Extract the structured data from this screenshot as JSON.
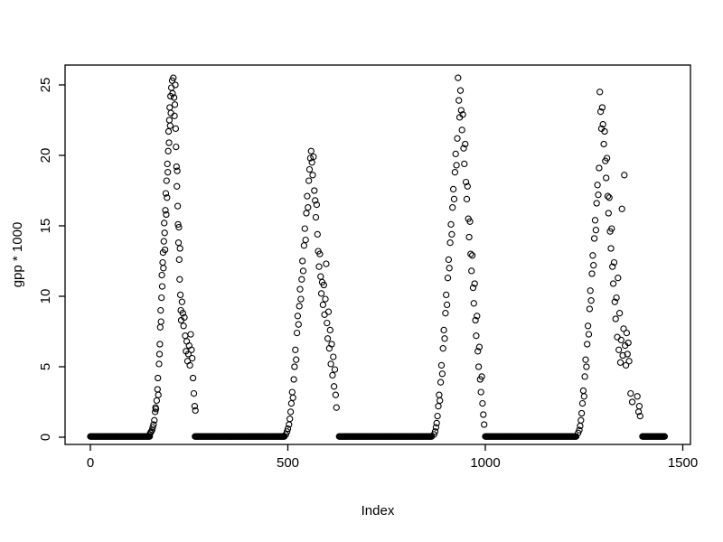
{
  "chart_data": {
    "type": "scatter",
    "title": "",
    "xlabel": "Index",
    "ylabel": "gpp * 1000",
    "xlim": [
      0,
      1500
    ],
    "ylim": [
      0,
      25
    ],
    "x_ticks": [
      0,
      500,
      1000,
      1500
    ],
    "y_ticks": [
      0,
      5,
      10,
      15,
      20,
      25
    ],
    "grid": "off",
    "legend": "none",
    "marker": {
      "shape": "open-circle",
      "color": "#000000",
      "radius_px": 3.1
    },
    "zero_value": 0.05,
    "zero_runs": [
      [
        0,
        150
      ],
      [
        265,
        492
      ],
      [
        630,
        865
      ],
      [
        1000,
        1230
      ],
      [
        1398,
        1455
      ]
    ],
    "points": [
      [
        150,
        0.2
      ],
      [
        152,
        0.3
      ],
      [
        154,
        0.4
      ],
      [
        156,
        0.5
      ],
      [
        158,
        0.7
      ],
      [
        160,
        0.9
      ],
      [
        162,
        1.2
      ],
      [
        164,
        1.8
      ],
      [
        165,
        2.1
      ],
      [
        166,
        2.0
      ],
      [
        168,
        2.6
      ],
      [
        170,
        3.4
      ],
      [
        171,
        4.2
      ],
      [
        172,
        3.0
      ],
      [
        174,
        5.2
      ],
      [
        175,
        5.9
      ],
      [
        176,
        6.6
      ],
      [
        177,
        7.8
      ],
      [
        178,
        9.0
      ],
      [
        179,
        8.2
      ],
      [
        180,
        9.9
      ],
      [
        181,
        11.5
      ],
      [
        182,
        10.7
      ],
      [
        183,
        12.4
      ],
      [
        184,
        13.1
      ],
      [
        185,
        12.0
      ],
      [
        186,
        13.9
      ],
      [
        187,
        15.2
      ],
      [
        188,
        14.5
      ],
      [
        189,
        13.3
      ],
      [
        190,
        16.1
      ],
      [
        191,
        17.3
      ],
      [
        192,
        15.8
      ],
      [
        193,
        18.2
      ],
      [
        194,
        17.0
      ],
      [
        195,
        19.4
      ],
      [
        196,
        18.8
      ],
      [
        197,
        20.3
      ],
      [
        198,
        21.7
      ],
      [
        199,
        20.9
      ],
      [
        200,
        22.5
      ],
      [
        201,
        23.4
      ],
      [
        202,
        22.1
      ],
      [
        203,
        24.2
      ],
      [
        204,
        23.0
      ],
      [
        205,
        24.8
      ],
      [
        207,
        25.3
      ],
      [
        208,
        24.4
      ],
      [
        210,
        25.5
      ],
      [
        212,
        24.1
      ],
      [
        213,
        22.8
      ],
      [
        214,
        23.6
      ],
      [
        215,
        25.0
      ],
      [
        216,
        21.9
      ],
      [
        217,
        20.6
      ],
      [
        218,
        19.2
      ],
      [
        219,
        17.8
      ],
      [
        220,
        18.9
      ],
      [
        221,
        16.4
      ],
      [
        222,
        15.1
      ],
      [
        223,
        13.8
      ],
      [
        224,
        14.9
      ],
      [
        225,
        12.6
      ],
      [
        226,
        11.2
      ],
      [
        227,
        13.4
      ],
      [
        228,
        10.1
      ],
      [
        229,
        9.0
      ],
      [
        230,
        8.3
      ],
      [
        232,
        9.6
      ],
      [
        234,
        8.8
      ],
      [
        236,
        7.9
      ],
      [
        238,
        8.5
      ],
      [
        240,
        7.2
      ],
      [
        242,
        6.1
      ],
      [
        244,
        6.8
      ],
      [
        246,
        5.4
      ],
      [
        248,
        5.9
      ],
      [
        250,
        6.5
      ],
      [
        252,
        5.1
      ],
      [
        254,
        7.3
      ],
      [
        256,
        6.2
      ],
      [
        258,
        5.6
      ],
      [
        260,
        4.2
      ],
      [
        262,
        3.1
      ],
      [
        264,
        2.2
      ],
      [
        266,
        1.9
      ],
      [
        495,
        0.2
      ],
      [
        498,
        0.4
      ],
      [
        500,
        0.6
      ],
      [
        503,
        0.9
      ],
      [
        505,
        1.3
      ],
      [
        507,
        1.8
      ],
      [
        509,
        2.4
      ],
      [
        511,
        3.2
      ],
      [
        513,
        2.8
      ],
      [
        515,
        4.1
      ],
      [
        517,
        5.0
      ],
      [
        519,
        6.2
      ],
      [
        521,
        5.5
      ],
      [
        523,
        7.4
      ],
      [
        525,
        8.6
      ],
      [
        527,
        8.0
      ],
      [
        529,
        9.3
      ],
      [
        531,
        10.5
      ],
      [
        533,
        9.8
      ],
      [
        535,
        11.2
      ],
      [
        537,
        12.5
      ],
      [
        539,
        11.8
      ],
      [
        541,
        13.6
      ],
      [
        543,
        14.8
      ],
      [
        545,
        14.0
      ],
      [
        547,
        15.9
      ],
      [
        549,
        17.1
      ],
      [
        551,
        16.3
      ],
      [
        553,
        18.2
      ],
      [
        555,
        19.0
      ],
      [
        557,
        19.8
      ],
      [
        559,
        20.3
      ],
      [
        561,
        19.5
      ],
      [
        563,
        18.6
      ],
      [
        565,
        19.9
      ],
      [
        567,
        17.5
      ],
      [
        569,
        16.8
      ],
      [
        571,
        15.6
      ],
      [
        573,
        16.5
      ],
      [
        575,
        14.4
      ],
      [
        577,
        13.2
      ],
      [
        579,
        12.1
      ],
      [
        581,
        13.0
      ],
      [
        583,
        11.4
      ],
      [
        585,
        10.2
      ],
      [
        587,
        11.0
      ],
      [
        589,
        9.4
      ],
      [
        591,
        10.8
      ],
      [
        593,
        8.7
      ],
      [
        595,
        9.8
      ],
      [
        597,
        12.3
      ],
      [
        599,
        8.1
      ],
      [
        601,
        7.0
      ],
      [
        603,
        8.9
      ],
      [
        605,
        6.3
      ],
      [
        607,
        7.6
      ],
      [
        609,
        5.2
      ],
      [
        611,
        6.6
      ],
      [
        613,
        4.4
      ],
      [
        615,
        5.7
      ],
      [
        617,
        3.6
      ],
      [
        619,
        4.8
      ],
      [
        621,
        3.0
      ],
      [
        623,
        2.1
      ],
      [
        870,
        0.2
      ],
      [
        873,
        0.4
      ],
      [
        875,
        0.7
      ],
      [
        877,
        1.0
      ],
      [
        879,
        1.5
      ],
      [
        881,
        2.2
      ],
      [
        883,
        3.0
      ],
      [
        885,
        2.6
      ],
      [
        887,
        3.9
      ],
      [
        889,
        5.1
      ],
      [
        891,
        4.5
      ],
      [
        893,
        6.3
      ],
      [
        895,
        7.6
      ],
      [
        897,
        7.0
      ],
      [
        899,
        8.8
      ],
      [
        901,
        10.1
      ],
      [
        903,
        9.4
      ],
      [
        905,
        11.3
      ],
      [
        907,
        12.6
      ],
      [
        909,
        12.0
      ],
      [
        911,
        13.8
      ],
      [
        913,
        15.1
      ],
      [
        915,
        14.4
      ],
      [
        917,
        16.3
      ],
      [
        919,
        17.6
      ],
      [
        921,
        16.9
      ],
      [
        923,
        18.8
      ],
      [
        925,
        20.1
      ],
      [
        927,
        19.3
      ],
      [
        929,
        21.2
      ],
      [
        931,
        25.5
      ],
      [
        933,
        23.9
      ],
      [
        935,
        22.7
      ],
      [
        937,
        24.6
      ],
      [
        939,
        23.2
      ],
      [
        941,
        21.8
      ],
      [
        943,
        22.9
      ],
      [
        945,
        20.5
      ],
      [
        947,
        19.4
      ],
      [
        949,
        20.8
      ],
      [
        951,
        18.1
      ],
      [
        953,
        16.9
      ],
      [
        955,
        17.8
      ],
      [
        957,
        15.5
      ],
      [
        959,
        14.2
      ],
      [
        961,
        15.3
      ],
      [
        963,
        13.0
      ],
      [
        965,
        11.8
      ],
      [
        967,
        12.9
      ],
      [
        969,
        10.6
      ],
      [
        971,
        9.5
      ],
      [
        973,
        10.9
      ],
      [
        975,
        8.3
      ],
      [
        977,
        7.2
      ],
      [
        979,
        8.6
      ],
      [
        981,
        6.1
      ],
      [
        983,
        5.0
      ],
      [
        985,
        6.4
      ],
      [
        987,
        4.1
      ],
      [
        989,
        3.2
      ],
      [
        991,
        4.3
      ],
      [
        993,
        2.4
      ],
      [
        995,
        1.6
      ],
      [
        997,
        0.9
      ],
      [
        1235,
        0.3
      ],
      [
        1238,
        0.5
      ],
      [
        1240,
        0.8
      ],
      [
        1242,
        1.2
      ],
      [
        1244,
        1.7
      ],
      [
        1246,
        2.4
      ],
      [
        1248,
        3.3
      ],
      [
        1250,
        2.9
      ],
      [
        1252,
        4.3
      ],
      [
        1254,
        5.5
      ],
      [
        1256,
        5.0
      ],
      [
        1258,
        6.6
      ],
      [
        1260,
        7.9
      ],
      [
        1262,
        7.3
      ],
      [
        1264,
        9.1
      ],
      [
        1266,
        10.4
      ],
      [
        1268,
        9.7
      ],
      [
        1270,
        11.6
      ],
      [
        1272,
        12.9
      ],
      [
        1274,
        12.2
      ],
      [
        1276,
        14.1
      ],
      [
        1278,
        15.4
      ],
      [
        1280,
        14.7
      ],
      [
        1282,
        16.6
      ],
      [
        1284,
        17.9
      ],
      [
        1286,
        17.2
      ],
      [
        1288,
        19.1
      ],
      [
        1290,
        24.5
      ],
      [
        1292,
        23.1
      ],
      [
        1294,
        21.9
      ],
      [
        1296,
        23.4
      ],
      [
        1298,
        22.2
      ],
      [
        1300,
        20.8
      ],
      [
        1302,
        21.7
      ],
      [
        1304,
        19.6
      ],
      [
        1306,
        18.4
      ],
      [
        1308,
        19.8
      ],
      [
        1310,
        17.1
      ],
      [
        1312,
        15.9
      ],
      [
        1314,
        17.0
      ],
      [
        1316,
        14.6
      ],
      [
        1318,
        13.4
      ],
      [
        1320,
        14.8
      ],
      [
        1322,
        12.1
      ],
      [
        1324,
        10.9
      ],
      [
        1326,
        12.4
      ],
      [
        1328,
        9.6
      ],
      [
        1330,
        8.4
      ],
      [
        1332,
        9.9
      ],
      [
        1334,
        7.1
      ],
      [
        1336,
        11.3
      ],
      [
        1338,
        6.2
      ],
      [
        1340,
        8.8
      ],
      [
        1342,
        5.3
      ],
      [
        1344,
        6.9
      ],
      [
        1346,
        16.2
      ],
      [
        1348,
        5.8
      ],
      [
        1350,
        7.7
      ],
      [
        1352,
        18.6
      ],
      [
        1354,
        6.5
      ],
      [
        1356,
        5.1
      ],
      [
        1358,
        7.4
      ],
      [
        1360,
        5.9
      ],
      [
        1362,
        6.7
      ],
      [
        1364,
        5.4
      ],
      [
        1368,
        3.1
      ],
      [
        1372,
        2.5
      ],
      [
        1385,
        2.9
      ],
      [
        1388,
        1.8
      ],
      [
        1390,
        2.2
      ],
      [
        1392,
        1.5
      ]
    ]
  }
}
